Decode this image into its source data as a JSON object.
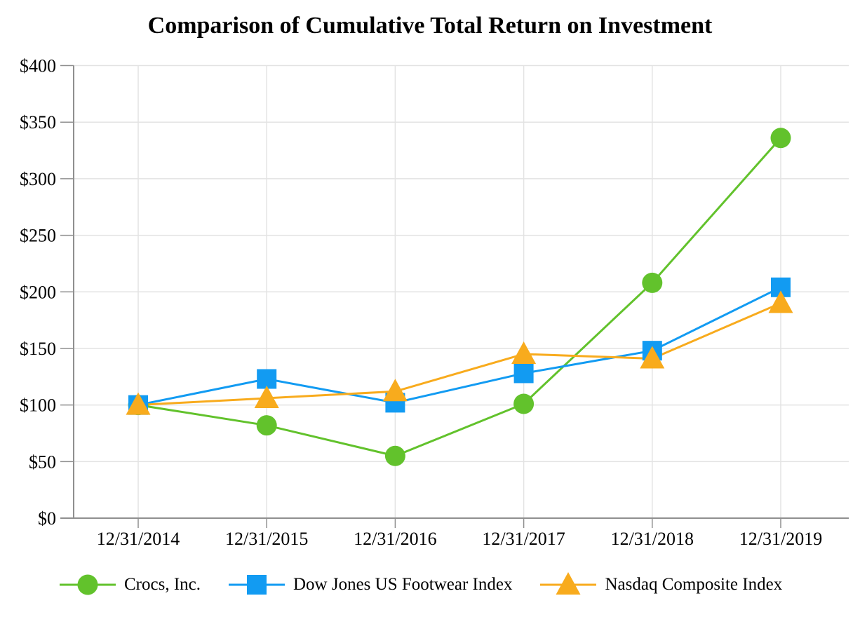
{
  "title": "Comparison of Cumulative Total Return on Investment",
  "chart_data": {
    "type": "line",
    "title": "Comparison of Cumulative Total Return on Investment",
    "categories": [
      "12/31/2014",
      "12/31/2015",
      "12/31/2016",
      "12/31/2017",
      "12/31/2018",
      "12/31/2019"
    ],
    "series": [
      {
        "name": "Crocs, Inc.",
        "marker": "circle",
        "color": "#62c22c",
        "values": [
          100,
          82,
          55,
          101,
          208,
          336
        ]
      },
      {
        "name": "Dow Jones US Footwear Index",
        "marker": "square",
        "color": "#129bf2",
        "values": [
          100,
          123,
          102,
          128,
          148,
          204
        ]
      },
      {
        "name": "Nasdaq Composite Index",
        "marker": "triangle",
        "color": "#f8ab1d",
        "values": [
          100,
          106,
          112,
          145,
          141,
          190
        ]
      }
    ],
    "ylim": [
      0,
      400
    ],
    "ytick_step": 50,
    "ytick_prefix": "$",
    "xlabel": "",
    "ylabel": "",
    "grid": true,
    "legend_position": "bottom"
  },
  "colors": {
    "gridline": "#e3e3e3",
    "axis": "#8f8f8f",
    "text": "#000000",
    "background": "#ffffff"
  }
}
